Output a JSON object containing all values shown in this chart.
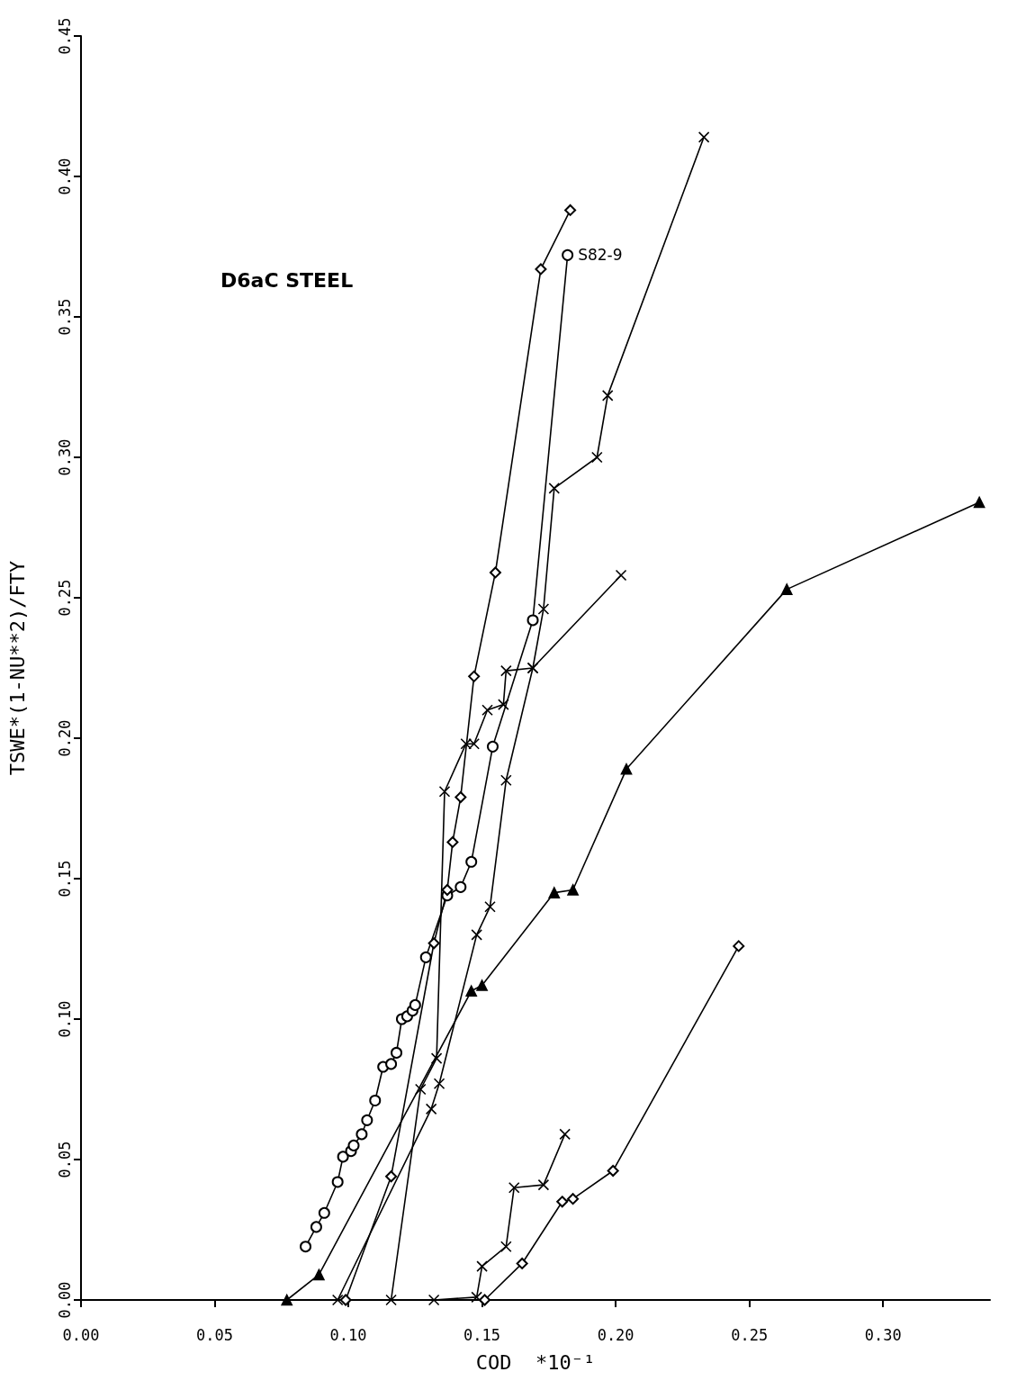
{
  "chart_data": {
    "type": "line",
    "xlabel": "COD  *10⁻¹",
    "ylabel": "TSWE*(1-NU**2)/FTY",
    "annotations": [
      "D6aC STEEL"
    ],
    "xlim": [
      0,
      0.34
    ],
    "ylim": [
      0,
      0.45
    ],
    "xticks": [
      {
        "value": 0,
        "label": "0.00"
      },
      {
        "value": 0.05,
        "label": "0.05"
      },
      {
        "value": 0.1,
        "label": "0.10"
      },
      {
        "value": 0.15,
        "label": "0.15"
      },
      {
        "value": 0.2,
        "label": "0.20"
      },
      {
        "value": 0.25,
        "label": "0.25"
      },
      {
        "value": 0.3,
        "label": "0.30"
      }
    ],
    "yticks": [
      {
        "value": 0,
        "label": "0.00"
      },
      {
        "value": 0.05,
        "label": "0.05"
      },
      {
        "value": 0.1,
        "label": "0.10"
      },
      {
        "value": 0.15,
        "label": "0.15"
      },
      {
        "value": 0.2,
        "label": "0.20"
      },
      {
        "value": 0.25,
        "label": "0.25"
      },
      {
        "value": 0.3,
        "label": "0.30"
      },
      {
        "value": 0.35,
        "label": "0.35"
      },
      {
        "value": 0.4,
        "label": "0.40"
      },
      {
        "value": 0.45,
        "label": "0.45"
      }
    ],
    "series": [
      {
        "name": "S82-9",
        "color": "#000000",
        "marker": "circle",
        "x": [
          0.084,
          0.088,
          0.091,
          0.096,
          0.098,
          0.101,
          0.102,
          0.105,
          0.107,
          0.11,
          0.113,
          0.116,
          0.118,
          0.12,
          0.122,
          0.124,
          0.125,
          0.129,
          0.137,
          0.142,
          0.146,
          0.154,
          0.169,
          0.182
        ],
        "values": [
          0.019,
          0.026,
          0.031,
          0.042,
          0.051,
          0.053,
          0.055,
          0.059,
          0.064,
          0.071,
          0.083,
          0.084,
          0.088,
          0.1,
          0.101,
          0.103,
          0.105,
          0.122,
          0.144,
          0.147,
          0.156,
          0.197,
          0.242,
          0.372
        ]
      },
      {
        "color": "#000000",
        "marker": "diamond",
        "x": [
          0.099,
          0.116,
          0.132,
          0.137,
          0.139,
          0.142,
          0.147,
          0.155,
          0.172,
          0.183
        ],
        "values": [
          0,
          0.044,
          0.127,
          0.146,
          0.163,
          0.179,
          0.222,
          0.259,
          0.367,
          0.388
        ]
      },
      {
        "color": "#000000",
        "marker": "cross",
        "x": [
          0.116,
          0.127,
          0.133,
          0.136,
          0.144,
          0.147,
          0.152,
          0.158,
          0.159,
          0.169,
          0.202
        ],
        "values": [
          0,
          0.075,
          0.086,
          0.181,
          0.198,
          0.198,
          0.21,
          0.212,
          0.224,
          0.225,
          0.258
        ]
      },
      {
        "color": "#000000",
        "marker": "cross",
        "x": [
          0.096,
          0.131,
          0.134,
          0.148,
          0.153,
          0.159,
          0.169,
          0.173,
          0.177,
          0.193,
          0.197,
          0.233
        ],
        "values": [
          0,
          0.068,
          0.077,
          0.13,
          0.14,
          0.185,
          0.225,
          0.246,
          0.289,
          0.3,
          0.322,
          0.414
        ]
      },
      {
        "color": "#000000",
        "marker": "triangle",
        "x": [
          0.077,
          0.089,
          0.146,
          0.15,
          0.177,
          0.184,
          0.204,
          0.264,
          0.336
        ],
        "values": [
          0,
          0.009,
          0.11,
          0.112,
          0.145,
          0.146,
          0.189,
          0.253,
          0.284
        ]
      },
      {
        "color": "#000000",
        "marker": "cross",
        "x": [
          0.132,
          0.148,
          0.15,
          0.159,
          0.162,
          0.173,
          0.181
        ],
        "values": [
          0,
          0.001,
          0.012,
          0.019,
          0.04,
          0.041,
          0.059
        ]
      },
      {
        "color": "#000000",
        "marker": "diamond",
        "x": [
          0.151,
          0.165,
          0.18,
          0.184,
          0.199,
          0.246
        ],
        "values": [
          0,
          0.013,
          0.035,
          0.036,
          0.046,
          0.126
        ]
      }
    ]
  }
}
